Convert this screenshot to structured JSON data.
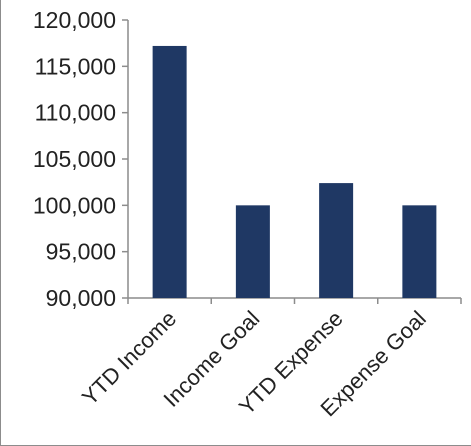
{
  "chart_data": {
    "type": "bar",
    "categories": [
      "YTD Income",
      "Income Goal",
      "YTD Expense",
      "Expense Goal"
    ],
    "values": [
      117200,
      100000,
      102400,
      100000
    ],
    "ylim": [
      90000,
      120000
    ],
    "yticks": [
      90000,
      95000,
      100000,
      105000,
      110000,
      115000,
      120000
    ],
    "ytick_labels": [
      "90,000",
      "95,000",
      "100,000",
      "105,000",
      "110,000",
      "115,000",
      "120,000"
    ],
    "bar_color": "#1f3864",
    "axis_color": "#8c8c8c",
    "grid": false,
    "legend": "none"
  }
}
